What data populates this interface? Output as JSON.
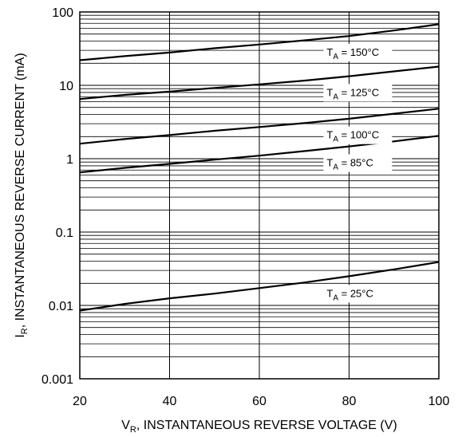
{
  "chart_data": {
    "type": "line",
    "title": "",
    "xlabel": {
      "main": "V",
      "sub": "R",
      "rest": ", INSTANTANEOUS REVERSE VOLTAGE (V)"
    },
    "ylabel": {
      "main": "I",
      "sub": "R",
      "rest": ", INSTANTANEOUS REVERSE CURRENT (mA)"
    },
    "xlim": [
      20,
      100
    ],
    "ylim": [
      0.001,
      100
    ],
    "yscale": "log",
    "grid": true,
    "x_ticks": [
      "20",
      "40",
      "60",
      "80",
      "100"
    ],
    "y_ticks": [
      "0.001",
      "0.01",
      "0.1",
      "1",
      "10",
      "100"
    ],
    "series": [
      {
        "name": {
          "main": "T",
          "sub": "A",
          "rest": " = 150°C"
        },
        "x": [
          20,
          30,
          40,
          50,
          60,
          70,
          80,
          90,
          100
        ],
        "y": [
          22,
          25,
          28,
          32,
          36,
          41,
          47,
          56,
          68
        ]
      },
      {
        "name": {
          "main": "T",
          "sub": "A",
          "rest": " = 125°C"
        },
        "x": [
          20,
          30,
          40,
          50,
          60,
          70,
          80,
          90,
          100
        ],
        "y": [
          6.5,
          7.4,
          8.2,
          9.2,
          10.3,
          11.6,
          13.3,
          15.5,
          18
        ]
      },
      {
        "name": {
          "main": "T",
          "sub": "A",
          "rest": " = 100°C"
        },
        "x": [
          20,
          30,
          40,
          50,
          60,
          70,
          80,
          90,
          100
        ],
        "y": [
          1.6,
          1.85,
          2.1,
          2.4,
          2.7,
          3.05,
          3.5,
          4.1,
          4.8
        ]
      },
      {
        "name": {
          "main": "T",
          "sub": "A",
          "rest": " = 85°C"
        },
        "x": [
          20,
          30,
          40,
          50,
          60,
          70,
          80,
          90,
          100
        ],
        "y": [
          0.65,
          0.75,
          0.85,
          0.97,
          1.1,
          1.27,
          1.47,
          1.72,
          2.05
        ]
      },
      {
        "name": {
          "main": "T",
          "sub": "A",
          "rest": " = 25°C"
        },
        "x": [
          20,
          30,
          40,
          50,
          60,
          70,
          80,
          90,
          100
        ],
        "y": [
          0.0085,
          0.0105,
          0.0125,
          0.0145,
          0.0172,
          0.0205,
          0.025,
          0.031,
          0.039
        ]
      }
    ]
  }
}
